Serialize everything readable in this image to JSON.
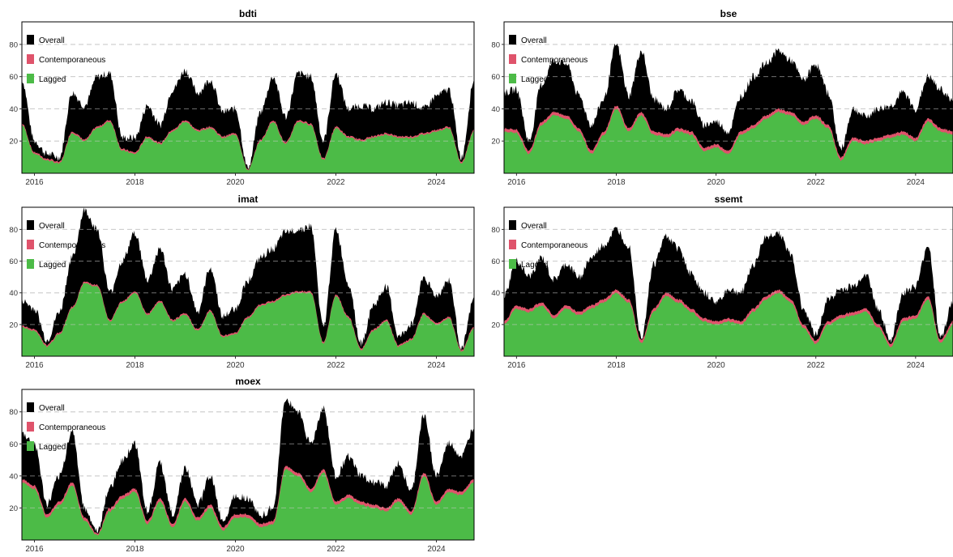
{
  "colors": {
    "overall": "#000000",
    "contemporaneous": "#DF536B",
    "lagged": "#4CBB47",
    "grid": "#CCCCCC",
    "axis": "#000000"
  },
  "chart_data": [
    {
      "type": "area",
      "title": "bdti",
      "xlim": [
        2015.75,
        2024.75
      ],
      "ylim": [
        0,
        94
      ],
      "x_ticks": [
        "2016",
        "2018",
        "2020",
        "2022",
        "2024"
      ],
      "x_tick_values": [
        2016,
        2018,
        2020,
        2022,
        2024
      ],
      "y_ticks": [
        "20",
        "40",
        "60",
        "80"
      ],
      "y_tick_values": [
        20,
        40,
        60,
        80
      ],
      "grid": "horizontal dashed",
      "legend": "top-left",
      "stacked": true,
      "series": [
        {
          "name": "Overall",
          "color": "#000000"
        },
        {
          "name": "Contemporaneous",
          "color": "#DF536B"
        },
        {
          "name": "Lagged",
          "color": "#4CBB47"
        }
      ],
      "x": [
        2015.75,
        2016.0,
        2016.25,
        2016.5,
        2016.75,
        2017.0,
        2017.25,
        2017.5,
        2017.75,
        2018.0,
        2018.25,
        2018.5,
        2018.75,
        2019.0,
        2019.25,
        2019.5,
        2019.75,
        2020.0,
        2020.25,
        2020.5,
        2020.75,
        2021.0,
        2021.25,
        2021.5,
        2021.75,
        2022.0,
        2022.25,
        2022.5,
        2022.75,
        2023.0,
        2023.25,
        2023.5,
        2023.75,
        2024.0,
        2024.25,
        2024.5,
        2024.75
      ],
      "overall": [
        58,
        20,
        12,
        10,
        50,
        42,
        60,
        62,
        22,
        22,
        42,
        30,
        52,
        64,
        50,
        58,
        38,
        40,
        3,
        38,
        60,
        35,
        62,
        60,
        20,
        62,
        40,
        42,
        40,
        44,
        42,
        44,
        40,
        48,
        52,
        10,
        58
      ],
      "lagged": [
        30,
        12,
        8,
        6,
        25,
        20,
        28,
        32,
        14,
        12,
        22,
        18,
        26,
        32,
        26,
        28,
        22,
        24,
        2,
        20,
        32,
        18,
        32,
        30,
        8,
        28,
        22,
        20,
        22,
        24,
        22,
        22,
        24,
        26,
        28,
        6,
        26
      ],
      "contemporaneous": [
        1,
        1,
        1,
        1,
        1,
        1,
        1,
        1,
        1,
        1,
        1,
        1,
        1,
        1,
        1,
        1,
        1,
        1,
        0.5,
        1,
        1,
        1,
        1,
        1,
        1,
        1,
        1,
        1,
        1,
        1,
        1,
        1,
        1,
        1,
        1,
        1,
        1
      ]
    },
    {
      "type": "area",
      "title": "bse",
      "xlim": [
        2015.75,
        2024.75
      ],
      "ylim": [
        0,
        94
      ],
      "x_ticks": [
        "2016",
        "2018",
        "2020",
        "2022",
        "2024"
      ],
      "x_tick_values": [
        2016,
        2018,
        2020,
        2022,
        2024
      ],
      "y_ticks": [
        "20",
        "40",
        "60",
        "80"
      ],
      "y_tick_values": [
        20,
        40,
        60,
        80
      ],
      "grid": "horizontal dashed",
      "legend": "top-left",
      "stacked": true,
      "series": [
        {
          "name": "Overall",
          "color": "#000000"
        },
        {
          "name": "Contemporaneous",
          "color": "#DF536B"
        },
        {
          "name": "Lagged",
          "color": "#4CBB47"
        }
      ],
      "x": [
        2015.75,
        2016.0,
        2016.25,
        2016.5,
        2016.75,
        2017.0,
        2017.25,
        2017.5,
        2017.75,
        2018.0,
        2018.25,
        2018.5,
        2018.75,
        2019.0,
        2019.25,
        2019.5,
        2019.75,
        2020.0,
        2020.25,
        2020.5,
        2020.75,
        2021.0,
        2021.25,
        2021.5,
        2021.75,
        2022.0,
        2022.25,
        2022.5,
        2022.75,
        2023.0,
        2023.25,
        2023.5,
        2023.75,
        2024.0,
        2024.25,
        2024.5,
        2024.75
      ],
      "overall": [
        50,
        52,
        20,
        55,
        70,
        68,
        48,
        30,
        46,
        80,
        48,
        76,
        46,
        40,
        52,
        45,
        30,
        32,
        26,
        48,
        60,
        68,
        76,
        70,
        58,
        68,
        50,
        15,
        40,
        35,
        40,
        42,
        50,
        40,
        60,
        52,
        45
      ],
      "lagged": [
        26,
        25,
        12,
        30,
        36,
        34,
        26,
        12,
        24,
        40,
        26,
        36,
        24,
        22,
        26,
        24,
        14,
        16,
        12,
        24,
        28,
        34,
        38,
        36,
        30,
        34,
        28,
        8,
        20,
        18,
        20,
        22,
        24,
        20,
        32,
        26,
        24
      ],
      "contemporaneous": [
        2,
        2,
        2,
        2,
        2,
        2,
        2,
        2,
        2,
        2,
        2,
        2,
        2,
        2,
        2,
        2,
        2,
        2,
        2,
        2,
        2,
        2,
        2,
        2,
        2,
        2,
        2,
        2,
        2,
        2,
        2,
        2,
        2,
        2,
        2,
        2,
        2
      ]
    },
    {
      "type": "area",
      "title": "imat",
      "xlim": [
        2015.75,
        2024.75
      ],
      "ylim": [
        0,
        94
      ],
      "x_ticks": [
        "2016",
        "2018",
        "2020",
        "2022",
        "2024"
      ],
      "x_tick_values": [
        2016,
        2018,
        2020,
        2022,
        2024
      ],
      "y_ticks": [
        "20",
        "40",
        "60",
        "80"
      ],
      "y_tick_values": [
        20,
        40,
        60,
        80
      ],
      "grid": "horizontal dashed",
      "legend": "top-left",
      "stacked": true,
      "series": [
        {
          "name": "Overall",
          "color": "#000000"
        },
        {
          "name": "Contemporaneous",
          "color": "#DF536B"
        },
        {
          "name": "Lagged",
          "color": "#4CBB47"
        }
      ],
      "x": [
        2015.75,
        2016.0,
        2016.25,
        2016.5,
        2016.75,
        2017.0,
        2017.25,
        2017.5,
        2017.75,
        2018.0,
        2018.25,
        2018.5,
        2018.75,
        2019.0,
        2019.25,
        2019.5,
        2019.75,
        2020.0,
        2020.25,
        2020.5,
        2020.75,
        2021.0,
        2021.25,
        2021.5,
        2021.75,
        2022.0,
        2022.25,
        2022.5,
        2022.75,
        2023.0,
        2023.25,
        2023.5,
        2023.75,
        2024.0,
        2024.25,
        2024.5,
        2024.75
      ],
      "overall": [
        35,
        30,
        10,
        28,
        62,
        92,
        80,
        40,
        60,
        78,
        48,
        68,
        42,
        52,
        28,
        56,
        25,
        30,
        48,
        62,
        68,
        78,
        80,
        82,
        18,
        80,
        46,
        8,
        32,
        44,
        12,
        20,
        50,
        38,
        48,
        5,
        36
      ],
      "lagged": [
        18,
        16,
        6,
        14,
        30,
        46,
        44,
        22,
        34,
        40,
        26,
        34,
        22,
        26,
        16,
        28,
        12,
        14,
        24,
        32,
        34,
        38,
        40,
        40,
        8,
        38,
        24,
        4,
        16,
        22,
        6,
        10,
        26,
        20,
        24,
        3,
        18
      ],
      "contemporaneous": [
        1,
        1,
        1,
        1,
        1,
        1,
        1,
        1,
        1,
        1,
        1,
        1,
        1,
        1,
        1,
        1,
        1,
        1,
        1,
        1,
        1,
        1,
        1,
        1,
        1,
        1,
        1,
        1,
        1,
        1,
        1,
        1,
        1,
        1,
        1,
        1,
        1
      ]
    },
    {
      "type": "area",
      "title": "ssemt",
      "xlim": [
        2015.75,
        2024.75
      ],
      "ylim": [
        0,
        94
      ],
      "x_ticks": [
        "2016",
        "2018",
        "2020",
        "2022",
        "2024"
      ],
      "x_tick_values": [
        2016,
        2018,
        2020,
        2022,
        2024
      ],
      "y_ticks": [
        "20",
        "40",
        "60",
        "80"
      ],
      "y_tick_values": [
        20,
        40,
        60,
        80
      ],
      "grid": "horizontal dashed",
      "legend": "top-left",
      "stacked": true,
      "series": [
        {
          "name": "Overall",
          "color": "#000000"
        },
        {
          "name": "Contemporaneous",
          "color": "#DF536B"
        },
        {
          "name": "Lagged",
          "color": "#4CBB47"
        }
      ],
      "x": [
        2015.75,
        2016.0,
        2016.25,
        2016.5,
        2016.75,
        2017.0,
        2017.25,
        2017.5,
        2017.75,
        2018.0,
        2018.25,
        2018.5,
        2018.75,
        2019.0,
        2019.25,
        2019.5,
        2019.75,
        2020.0,
        2020.25,
        2020.5,
        2020.75,
        2021.0,
        2021.25,
        2021.5,
        2021.75,
        2022.0,
        2022.25,
        2022.5,
        2022.75,
        2023.0,
        2023.25,
        2023.5,
        2023.75,
        2024.0,
        2024.25,
        2024.5,
        2024.75
      ],
      "overall": [
        38,
        60,
        50,
        62,
        48,
        58,
        50,
        62,
        70,
        80,
        70,
        12,
        58,
        76,
        68,
        52,
        40,
        34,
        42,
        40,
        58,
        75,
        78,
        64,
        30,
        14,
        36,
        42,
        44,
        52,
        30,
        10,
        40,
        44,
        70,
        12,
        34
      ],
      "lagged": [
        20,
        30,
        28,
        32,
        24,
        30,
        26,
        30,
        34,
        40,
        34,
        8,
        28,
        38,
        34,
        28,
        22,
        20,
        22,
        20,
        28,
        36,
        40,
        34,
        18,
        8,
        20,
        24,
        26,
        28,
        18,
        6,
        22,
        24,
        36,
        8,
        20
      ],
      "contemporaneous": [
        2,
        2,
        2,
        2,
        2,
        2,
        2,
        2,
        2,
        2,
        2,
        2,
        2,
        2,
        2,
        2,
        2,
        2,
        2,
        2,
        2,
        2,
        2,
        2,
        2,
        2,
        2,
        2,
        2,
        2,
        2,
        2,
        2,
        2,
        2,
        2,
        2
      ]
    },
    {
      "type": "area",
      "title": "moex",
      "xlim": [
        2015.75,
        2024.75
      ],
      "ylim": [
        0,
        94
      ],
      "x_ticks": [
        "2016",
        "2018",
        "2020",
        "2022",
        "2024"
      ],
      "x_tick_values": [
        2016,
        2018,
        2020,
        2022,
        2024
      ],
      "y_ticks": [
        "20",
        "40",
        "60",
        "80"
      ],
      "y_tick_values": [
        20,
        40,
        60,
        80
      ],
      "grid": "horizontal dashed",
      "legend": "top-left",
      "stacked": true,
      "series": [
        {
          "name": "Overall",
          "color": "#000000"
        },
        {
          "name": "Contemporaneous",
          "color": "#DF536B"
        },
        {
          "name": "Lagged",
          "color": "#4CBB47"
        }
      ],
      "x": [
        2015.75,
        2016.0,
        2016.25,
        2016.5,
        2016.75,
        2017.0,
        2017.25,
        2017.5,
        2017.75,
        2018.0,
        2018.25,
        2018.5,
        2018.75,
        2019.0,
        2019.25,
        2019.5,
        2019.75,
        2020.0,
        2020.25,
        2020.5,
        2020.75,
        2021.0,
        2021.25,
        2021.5,
        2021.75,
        2022.0,
        2022.25,
        2022.5,
        2022.75,
        2023.0,
        2023.25,
        2023.5,
        2023.75,
        2024.0,
        2024.25,
        2024.5,
        2024.75
      ],
      "overall": [
        66,
        60,
        22,
        40,
        68,
        20,
        5,
        32,
        50,
        60,
        18,
        48,
        16,
        45,
        22,
        40,
        12,
        28,
        26,
        15,
        20,
        88,
        80,
        60,
        82,
        40,
        52,
        40,
        36,
        34,
        48,
        30,
        78,
        40,
        60,
        52,
        70
      ],
      "lagged": [
        36,
        32,
        14,
        22,
        34,
        12,
        3,
        18,
        26,
        30,
        10,
        24,
        8,
        24,
        12,
        20,
        6,
        14,
        14,
        8,
        10,
        44,
        40,
        30,
        42,
        22,
        26,
        22,
        20,
        18,
        24,
        16,
        40,
        22,
        30,
        28,
        36
      ],
      "contemporaneous": [
        2,
        2,
        2,
        2,
        2,
        2,
        1,
        2,
        2,
        2,
        2,
        2,
        2,
        2,
        2,
        2,
        2,
        2,
        2,
        2,
        2,
        2,
        2,
        2,
        2,
        2,
        2,
        2,
        2,
        2,
        2,
        2,
        2,
        2,
        2,
        2,
        2
      ]
    }
  ]
}
